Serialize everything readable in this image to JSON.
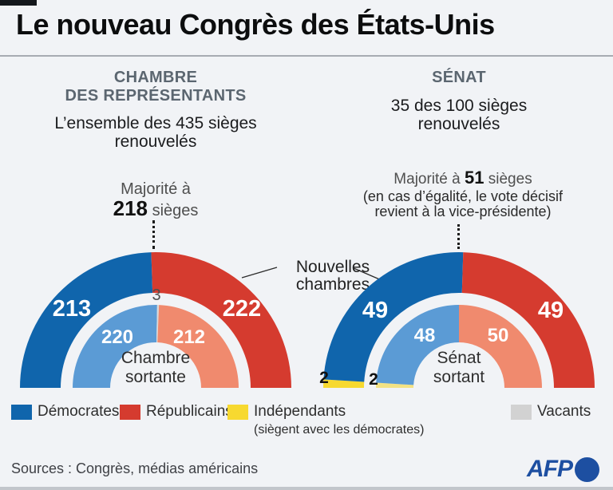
{
  "page": {
    "title": "Le nouveau Congrès des États-Unis",
    "background": "#f1f3f6"
  },
  "colors": {
    "democrats": "#1065ac",
    "republicans": "#d53b2f",
    "democrats_light": "#5b9bd5",
    "republicans_light": "#f08a6e",
    "independents": "#f7d930",
    "independents_light": "#f3e283",
    "vacants": "#d9d9d9",
    "vacants_legend": "#d2d2d2",
    "heading": "#5b6670",
    "afp_blue": "#1d4fa1"
  },
  "house": {
    "heading_line1": "CHAMBRE",
    "heading_line2": "DES REPRÉSENTANTS",
    "sub_line1": "L’ensemble des 435 sièges",
    "sub_line2": "renouvelés",
    "majority_prefix": "Majorité à",
    "majority_number": "218",
    "majority_suffix": "sièges",
    "center_line1": "Chambre",
    "center_line2": "sortante"
  },
  "senate": {
    "heading": "SÉNAT",
    "sub_line1": "35 des 100 sièges",
    "sub_line2": "renouvelés",
    "majority_prefix": "Majorité à",
    "majority_number": "51",
    "majority_suffix": "sièges",
    "note_line1": "(en cas d’égalité, le vote décisif",
    "note_line2": "revient à la vice-présidente)",
    "center_line1": "Sénat",
    "center_line2": "sortant"
  },
  "annotation": {
    "label_line1": "Nouvelles",
    "label_line2": "chambres"
  },
  "chart_data": [
    {
      "type": "half-donut",
      "name": "chambre-des-representants",
      "total_seats": 435,
      "rings": [
        {
          "name": "nouvelle-chambre",
          "segments": [
            {
              "label": "Démocrates",
              "value": 213,
              "color": "democrats"
            },
            {
              "label": "Républicains",
              "value": 222,
              "color": "republicans"
            }
          ]
        },
        {
          "name": "chambre-sortante",
          "segments": [
            {
              "label": "Démocrates",
              "value": 220,
              "color": "democrats_light"
            },
            {
              "label": "Vacants",
              "value": 3,
              "color": "vacants"
            },
            {
              "label": "Républicains",
              "value": 212,
              "color": "republicans_light"
            }
          ]
        }
      ]
    },
    {
      "type": "half-donut",
      "name": "senat",
      "total_seats": 100,
      "rings": [
        {
          "name": "nouveau-senat",
          "segments": [
            {
              "label": "Indépendants",
              "value": 2,
              "color": "independents"
            },
            {
              "label": "Démocrates",
              "value": 49,
              "color": "democrats"
            },
            {
              "label": "Républicains",
              "value": 49,
              "color": "republicans"
            }
          ]
        },
        {
          "name": "senat-sortant",
          "segments": [
            {
              "label": "Indépendants",
              "value": 2,
              "color": "independents_light"
            },
            {
              "label": "Démocrates",
              "value": 48,
              "color": "democrats_light"
            },
            {
              "label": "Républicains",
              "value": 50,
              "color": "republicans_light"
            }
          ]
        }
      ]
    }
  ],
  "legend": [
    {
      "label": "Démocrates",
      "color": "democrats"
    },
    {
      "label": "Républicains",
      "color": "republicans"
    },
    {
      "label": "Indépendants",
      "sublabel": "(siègent avec les démocrates)",
      "color": "independents"
    },
    {
      "label": "Vacants",
      "color": "vacants_legend"
    }
  ],
  "footer": {
    "sources": "Sources : Congrès, médias américains",
    "logo_text": "AFP"
  }
}
